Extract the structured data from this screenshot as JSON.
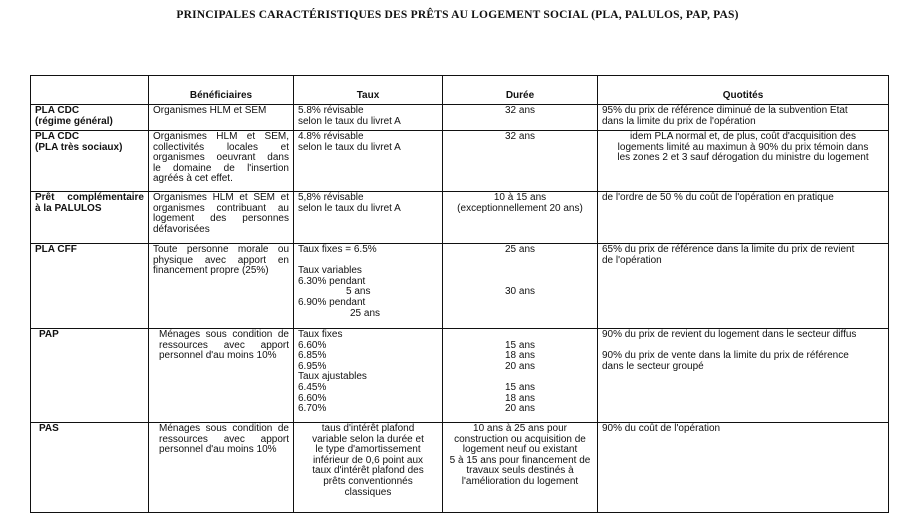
{
  "title": "PRINCIPALES CARACTÉRISTIQUES DES PRÊTS AU LOGEMENT SOCIAL (PLA, PALULOS, PAP, PAS)",
  "table": {
    "headers": [
      "",
      "Bénéficiaires",
      "Taux",
      "Durée",
      "Quotités"
    ],
    "rows": [
      {
        "name": [
          "PLA CDC",
          "(régime général)"
        ],
        "beneficiaires": [
          "Organismes HLM et SEM"
        ],
        "taux": [
          "5.8% révisable",
          "selon le taux du livret A"
        ],
        "duree": [
          "32 ans"
        ],
        "quotites": [
          "95% du prix de référence diminué de la subvention Etat",
          "dans la limite du prix de l'opération"
        ]
      },
      {
        "name": [
          "PLA CDC",
          "(PLA très sociaux)"
        ],
        "beneficiaires": [
          "Organismes HLM et SEM,",
          "collectivités locales et",
          "organismes oeuvrant dans",
          "le domaine de l'insertion",
          "agréés à cet effet."
        ],
        "taux": [
          "4.8% révisable",
          "selon le taux du livret A"
        ],
        "duree": [
          "32 ans"
        ],
        "quotites": [
          "idem PLA normal et, de plus, coût d'acquisition des",
          "logements limité au maximun à 90% du prix témoin dans",
          "les zones 2 et 3 sauf dérogation du ministre du logement"
        ]
      },
      {
        "name": [
          "Prêt complémentaire",
          "à la PALULOS"
        ],
        "beneficiaires": [
          "Organismes HLM et SEM et",
          "organismes contribuant au",
          "logement des personnes",
          "défavorisées"
        ],
        "taux": [
          "5,8% révisable",
          "selon le taux du livret A"
        ],
        "duree": [
          "10 à 15 ans",
          "(exceptionnellement 20 ans)"
        ],
        "quotites": [
          "de l'ordre de 50 % du coût de l'opération en pratique"
        ]
      },
      {
        "name": [
          "PLA CFF"
        ],
        "beneficiaires": [
          "Toute personne morale ou",
          "physique avec apport en",
          "financement propre (25%)"
        ],
        "taux": [
          "Taux fixes = 6.5%",
          "Taux variables",
          "6.30% pendant",
          "5 ans",
          "6.90% pendant",
          "25 ans"
        ],
        "duree": [
          "25 ans",
          "30 ans"
        ],
        "quotites": [
          "65% du prix de référence dans la limite du prix de revient",
          "de l'opération"
        ]
      },
      {
        "name": [
          "PAP"
        ],
        "beneficiaires": [
          "Ménages sous condition de",
          "ressources avec apport",
          "personnel d'au moins 10%"
        ],
        "taux": [
          "Taux fixes",
          "6.60%",
          "6.85%",
          "6.95%",
          "Taux ajustables",
          "6.45%",
          "6.60%",
          "6.70%"
        ],
        "duree": [
          "15 ans",
          "18 ans",
          "20 ans",
          "15 ans",
          "18 ans",
          "20 ans"
        ],
        "quotites": [
          "90% du prix de revient du logement dans le secteur diffus",
          "90% du prix de vente dans la limite du prix de référence",
          "dans le secteur groupé"
        ]
      },
      {
        "name": [
          "PAS"
        ],
        "beneficiaires": [
          "Ménages sous condition de",
          "ressources avec apport",
          "personnel d'au moins 10%"
        ],
        "taux": [
          "taus d'intérêt plafond",
          "variable selon la durée et",
          "le type d'amortissement",
          "inférieur de 0,6 point aux",
          "taux d'intérêt plafond des",
          "prêts conventionnés",
          "classiques"
        ],
        "duree": [
          "10 ans à 25 ans pour",
          "construction ou acquisition de",
          "logement neuf ou existant",
          "5 à 15 ans pour financement de",
          "travaux seuls destinés à",
          "l'amélioration du logement"
        ],
        "quotites": [
          "90% du coût de l'opération"
        ]
      }
    ]
  }
}
